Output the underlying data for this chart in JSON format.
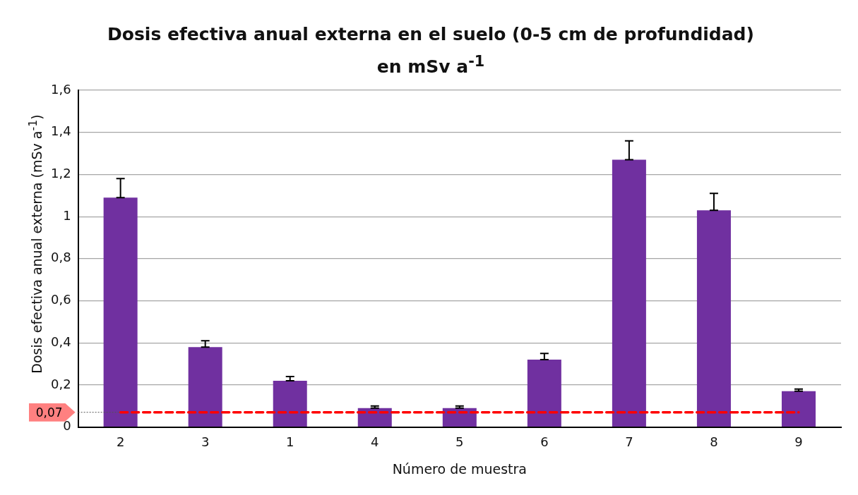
{
  "chart_data": {
    "type": "bar",
    "title": "Dosis efectiva anual externa en el suelo (0-5 cm de profundidad) en mSv a$^{-1}$",
    "xlabel": "Número de muestra",
    "ylabel": "Dosis efectiva anual externa (mSv a$^{-1}$)",
    "categories": [
      "2",
      "3",
      "1",
      "4",
      "5",
      "6",
      "7",
      "8",
      "9"
    ],
    "values": [
      1.09,
      0.38,
      0.22,
      0.09,
      0.09,
      0.32,
      1.27,
      1.03,
      0.17
    ],
    "errors": [
      [
        1.09,
        1.18
      ],
      [
        0.38,
        0.41
      ],
      [
        0.22,
        0.24
      ],
      [
        0.09,
        0.1
      ],
      [
        0.09,
        0.1
      ],
      [
        0.32,
        0.35
      ],
      [
        1.27,
        1.36
      ],
      [
        1.03,
        1.11
      ],
      [
        0.17,
        0.18
      ]
    ],
    "color": "#7030a0",
    "ylim": [
      0,
      1.6
    ],
    "yticks": [
      0,
      {
        "value": 0.2,
        "label": "0,2"
      },
      {
        "value": 0.4,
        "label": "0,4"
      },
      {
        "value": 0.6,
        "label": "0,6"
      },
      {
        "value": 0.8,
        "label": "0,8"
      },
      1,
      {
        "value": 1.2,
        "label": "1,2"
      },
      {
        "value": 1.4,
        "label": "1,4"
      },
      {
        "value": 1.6,
        "label": "1,6"
      }
    ],
    "grid": "y",
    "ref_lines": [
      {
        "axis": "y",
        "value": 0.07,
        "label": "0,07",
        "color": "#ff0000",
        "line_style": "dashed"
      }
    ]
  }
}
